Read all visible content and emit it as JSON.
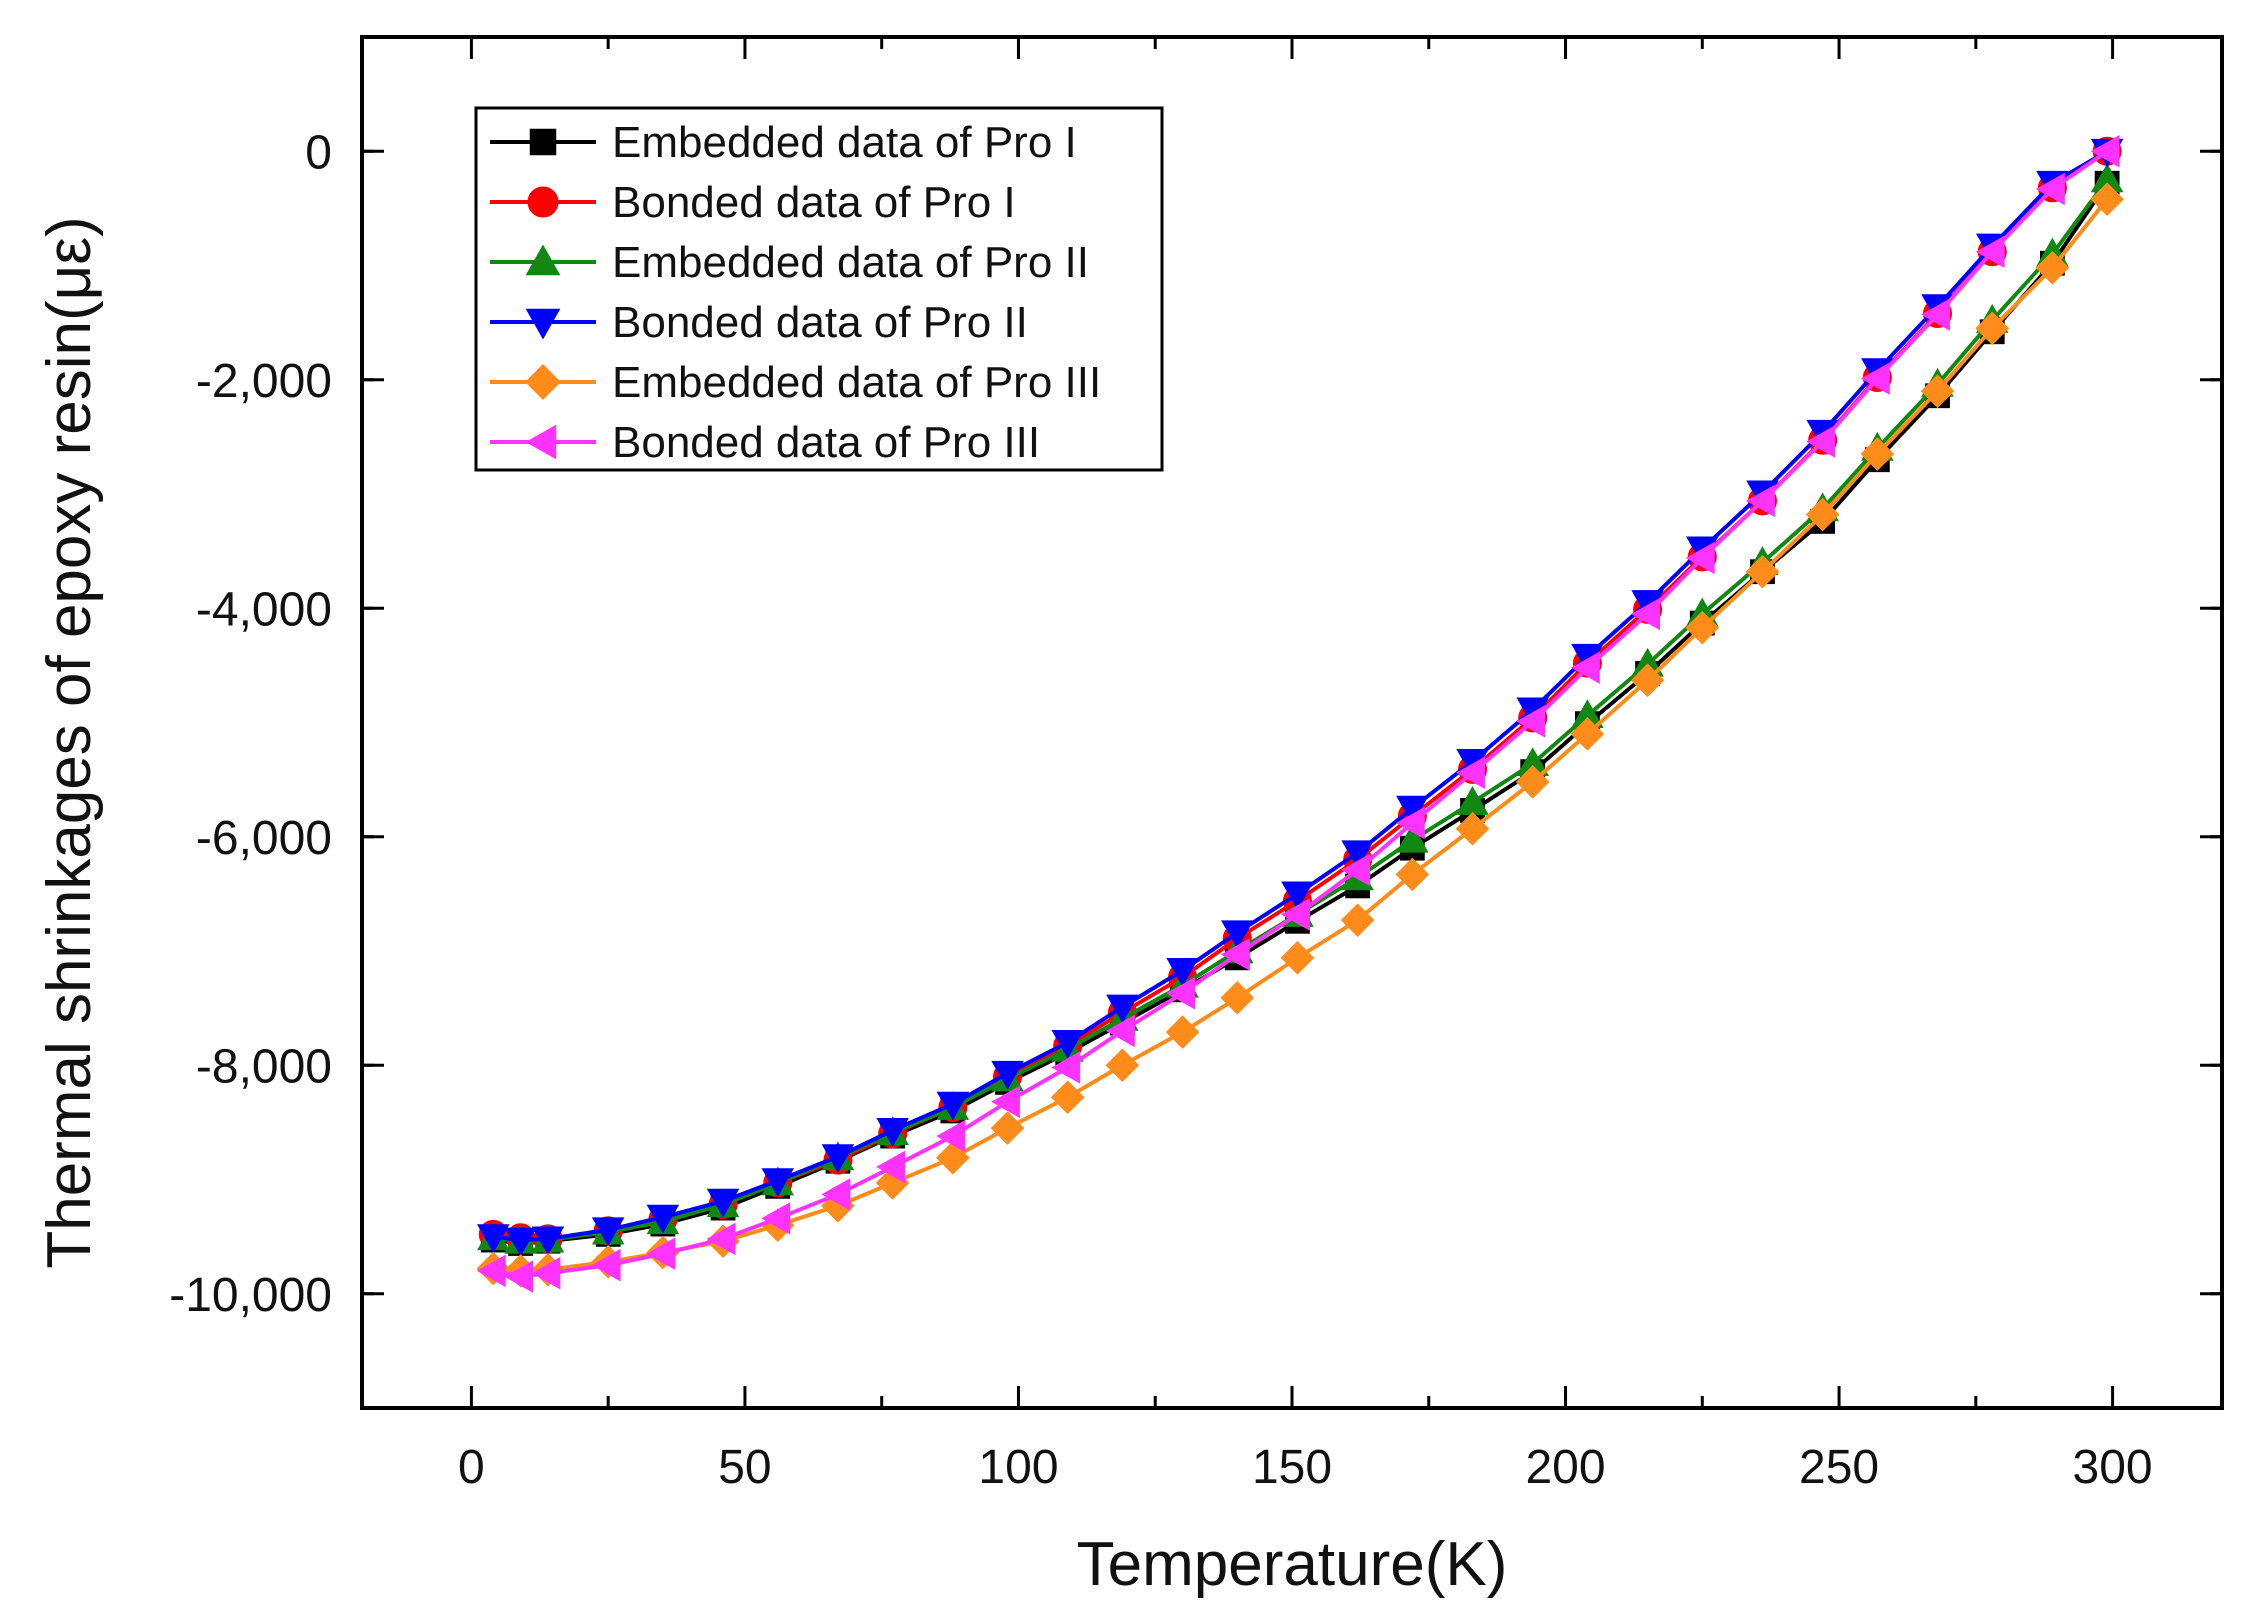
{
  "chart_data": {
    "type": "line",
    "xlabel": "Temperature(K)",
    "ylabel": "Thermal shrinkages of epoxy resin(με)",
    "xlim": [
      -20,
      320
    ],
    "ylim": [
      -11000,
      1000
    ],
    "xticks": [
      0,
      50,
      100,
      150,
      200,
      250,
      300
    ],
    "xtick_labels": [
      "0",
      "50",
      "100",
      "150",
      "200",
      "250",
      "300"
    ],
    "yticks": [
      0,
      -2000,
      -4000,
      -6000,
      -8000,
      -10000
    ],
    "ytick_labels": [
      "0",
      "-2,000",
      "-4,000",
      "-6,000",
      "-8,000",
      "-10,000"
    ],
    "grid": false,
    "legend_position": "top-left",
    "x": [
      4,
      9,
      14,
      25,
      35,
      46,
      56,
      67,
      77,
      88,
      98,
      109,
      119,
      130,
      140,
      151,
      162,
      172,
      183,
      194,
      204,
      215,
      225,
      236,
      247,
      257,
      268,
      278,
      289,
      299
    ],
    "series": [
      {
        "name": "Embedded data of Pro I",
        "color": "#000000",
        "marker": "square",
        "values": [
          -9530,
          -9560,
          -9540,
          -9480,
          -9390,
          -9250,
          -9060,
          -8840,
          -8620,
          -8400,
          -8150,
          -7890,
          -7630,
          -7340,
          -7060,
          -6740,
          -6430,
          -6100,
          -5770,
          -5430,
          -5010,
          -4570,
          -4130,
          -3680,
          -3240,
          -2700,
          -2140,
          -1580,
          -980,
          -280
        ]
      },
      {
        "name": "Bonded data of Pro I",
        "color": "#ff0000",
        "marker": "circle",
        "values": [
          -9480,
          -9510,
          -9520,
          -9450,
          -9350,
          -9220,
          -9030,
          -8830,
          -8600,
          -8370,
          -8100,
          -7830,
          -7540,
          -7230,
          -6890,
          -6560,
          -6200,
          -5820,
          -5410,
          -4960,
          -4480,
          -4010,
          -3550,
          -3060,
          -2530,
          -1980,
          -1420,
          -880,
          -320,
          0
        ]
      },
      {
        "name": "Embedded data of Pro II",
        "color": "#118811",
        "marker": "triangle-up",
        "values": [
          -9510,
          -9540,
          -9530,
          -9460,
          -9370,
          -9220,
          -9030,
          -8810,
          -8590,
          -8370,
          -8120,
          -7860,
          -7590,
          -7300,
          -7000,
          -6680,
          -6360,
          -6030,
          -5700,
          -5360,
          -4940,
          -4490,
          -4050,
          -3600,
          -3130,
          -2600,
          -2040,
          -1480,
          -900,
          -250
        ]
      },
      {
        "name": "Bonded data of Pro II",
        "color": "#0000ff",
        "marker": "triangle-down",
        "values": [
          -9500,
          -9530,
          -9520,
          -9440,
          -9330,
          -9190,
          -9010,
          -8800,
          -8570,
          -8340,
          -8070,
          -7800,
          -7490,
          -7170,
          -6840,
          -6500,
          -6140,
          -5750,
          -5340,
          -4890,
          -4420,
          -3950,
          -3480,
          -2990,
          -2460,
          -1920,
          -1360,
          -830,
          -280,
          0
        ]
      },
      {
        "name": "Embedded data of Pro III",
        "color": "#ff8c1a",
        "marker": "diamond",
        "values": [
          -9780,
          -9800,
          -9790,
          -9720,
          -9640,
          -9540,
          -9400,
          -9230,
          -9030,
          -8810,
          -8550,
          -8280,
          -8000,
          -7710,
          -7410,
          -7060,
          -6730,
          -6330,
          -5930,
          -5520,
          -5100,
          -4630,
          -4170,
          -3680,
          -3180,
          -2650,
          -2100,
          -1550,
          -1020,
          -420
        ]
      },
      {
        "name": "Bonded data of Pro III",
        "color": "#ff33ff",
        "marker": "triangle-left",
        "values": [
          -9800,
          -9850,
          -9820,
          -9750,
          -9650,
          -9520,
          -9340,
          -9130,
          -8890,
          -8620,
          -8320,
          -8020,
          -7700,
          -7370,
          -7030,
          -6680,
          -6290,
          -5880,
          -5440,
          -4990,
          -4520,
          -4050,
          -3560,
          -3060,
          -2540,
          -1990,
          -1430,
          -880,
          -330,
          0
        ]
      }
    ]
  }
}
